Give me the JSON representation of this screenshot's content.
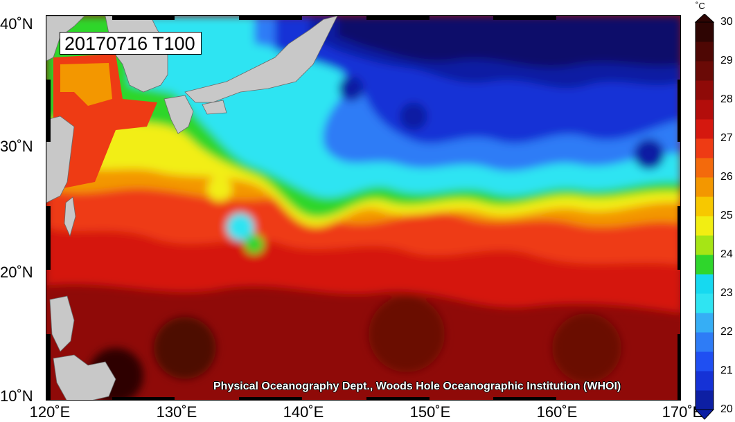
{
  "map": {
    "title": "20170716 T100",
    "credit": "Physical Oceanography Dept., Woods Hole Oceanographic Institution (WHOI)",
    "variable": "Temperature at 100 m",
    "lon_range": [
      120,
      170
    ],
    "lat_range": [
      10,
      40
    ],
    "x_ticks": [
      {
        "value": 120,
        "label": "120˚E"
      },
      {
        "value": 130,
        "label": "130˚E"
      },
      {
        "value": 140,
        "label": "140˚E"
      },
      {
        "value": 150,
        "label": "150˚E"
      },
      {
        "value": 160,
        "label": "160˚E"
      },
      {
        "value": 170,
        "label": "170˚E"
      }
    ],
    "y_ticks": [
      {
        "value": 40,
        "label": "40˚N"
      },
      {
        "value": 30,
        "label": "30˚N"
      },
      {
        "value": 20,
        "label": "20˚N"
      },
      {
        "value": 10,
        "label": "10˚N"
      }
    ],
    "land_color": "#c8c8c8",
    "cold_boundary_color": "#070d6b"
  },
  "colorbar": {
    "unit": "˚C",
    "min": 20,
    "max": 30,
    "levels": [
      {
        "value": 20,
        "label": "20"
      },
      {
        "value": 21,
        "label": "21"
      },
      {
        "value": 22,
        "label": "22"
      },
      {
        "value": 23,
        "label": "23"
      },
      {
        "value": 24,
        "label": "24"
      },
      {
        "value": 25,
        "label": "25"
      },
      {
        "value": 26,
        "label": "26"
      },
      {
        "value": 27,
        "label": "27"
      },
      {
        "value": 28,
        "label": "28"
      },
      {
        "value": 29,
        "label": "29"
      },
      {
        "value": 30,
        "label": "30"
      }
    ],
    "colors": [
      "#0d1fa3",
      "#1532d6",
      "#1f4ff2",
      "#2e7cf6",
      "#36aef5",
      "#2fe4f2",
      "#16d9f0",
      "#2fd62c",
      "#a6e515",
      "#f2ee12",
      "#f7c800",
      "#f39700",
      "#f36a0c",
      "#ee3b14",
      "#d5180f",
      "#b30d0b",
      "#8f0a08",
      "#6a0a06",
      "#4e0704",
      "#2e0503"
    ]
  }
}
